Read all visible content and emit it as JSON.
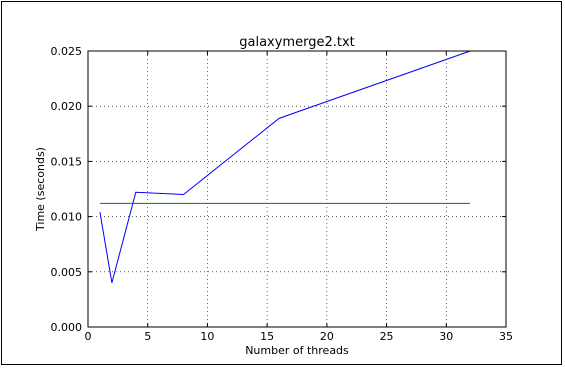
{
  "chart_data": {
    "type": "line",
    "title": "galaxymerge2.txt",
    "xlabel": "Number of threads",
    "ylabel": "Time (seconds)",
    "xlim": [
      0,
      35
    ],
    "ylim": [
      0.0,
      0.025
    ],
    "xticks": [
      0,
      5,
      10,
      15,
      20,
      25,
      30,
      35
    ],
    "xtick_labels": [
      "0",
      "5",
      "10",
      "15",
      "20",
      "25",
      "30",
      "35"
    ],
    "yticks": [
      0.0,
      0.005,
      0.01,
      0.015,
      0.02,
      0.025
    ],
    "ytick_labels": [
      "0.000",
      "0.005",
      "0.010",
      "0.015",
      "0.020",
      "0.025"
    ],
    "grid": true,
    "series": [
      {
        "color": "#0000ff",
        "x": [
          1,
          2,
          4,
          8,
          16,
          32
        ],
        "values": [
          0.0104,
          0.004,
          0.0122,
          0.012,
          0.0189,
          0.025
        ]
      },
      {
        "color": "#008000",
        "x": [
          1,
          32
        ],
        "values": [
          0.0112,
          0.0112
        ]
      }
    ]
  }
}
